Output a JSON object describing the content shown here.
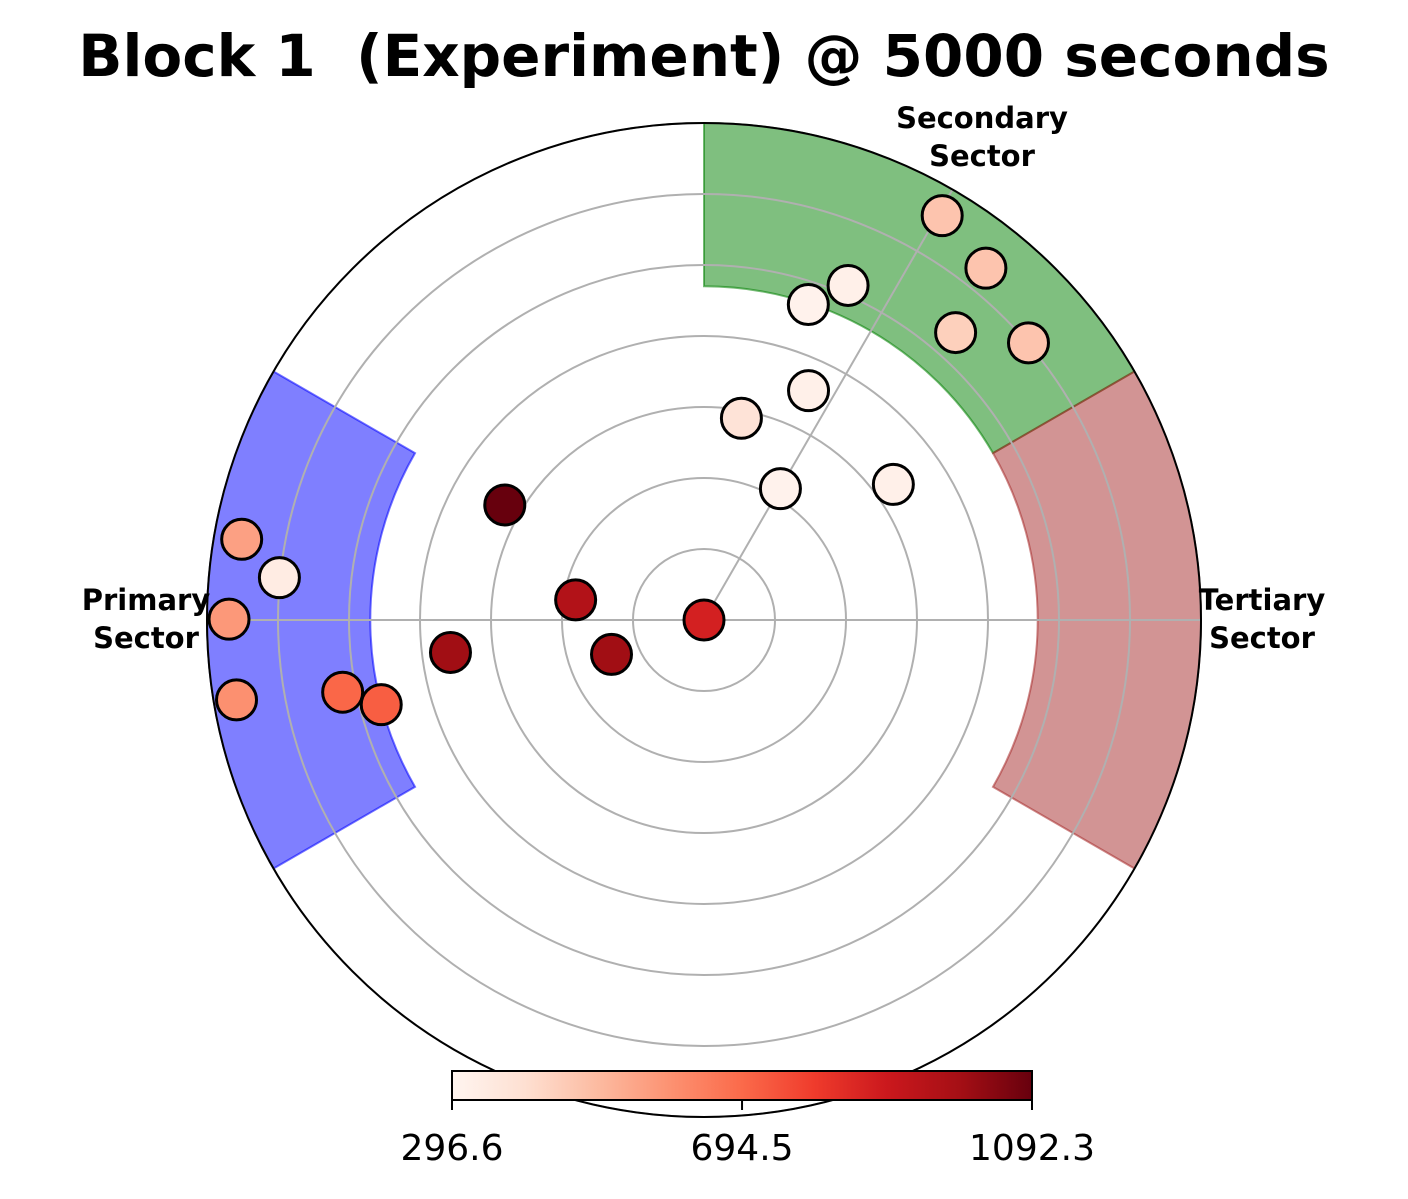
{
  "chart_data": {
    "type": "scatter",
    "subtype": "polar",
    "title": "Block 1  (Experiment) @ 5000 seconds",
    "rlim": [
      0,
      7
    ],
    "r_gridlines": [
      1,
      2,
      3,
      4,
      5,
      6,
      7
    ],
    "grid": true,
    "reference_line_angles_deg": [
      0,
      60
    ],
    "sectors": [
      {
        "label": [
          "Secondary",
          "Sector"
        ],
        "theta_deg": [
          30,
          90
        ],
        "r_range": [
          4.7,
          7
        ],
        "color": "#008000",
        "opacity": 0.5,
        "edge_color": "#008000"
      },
      {
        "label": [
          "Tertiary",
          "Sector"
        ],
        "theta_deg": [
          -30,
          30
        ],
        "r_range": [
          4.7,
          7
        ],
        "color": "#a52a2a",
        "opacity": 0.5,
        "edge_color": "#a52a2a"
      },
      {
        "label": [
          "Primary",
          "Sector"
        ],
        "theta_deg": [
          150,
          210
        ],
        "r_range": [
          4.7,
          7
        ],
        "color": "#0000ff",
        "opacity": 0.5,
        "edge_color": "#0000ff"
      }
    ],
    "points": [
      {
        "theta_deg": 0,
        "r": 0,
        "value": 870
      },
      {
        "theta_deg": 171.1,
        "r": 1.83,
        "value": 960
      },
      {
        "theta_deg": 200.4,
        "r": 1.39,
        "value": 1000
      },
      {
        "theta_deg": 187.3,
        "r": 3.6,
        "value": 1000
      },
      {
        "theta_deg": 150.0,
        "r": 3.24,
        "value": 1092.3
      },
      {
        "theta_deg": 59.8,
        "r": 2.14,
        "value": 310
      },
      {
        "theta_deg": 35.6,
        "r": 3.28,
        "value": 320
      },
      {
        "theta_deg": 79.5,
        "r": 2.89,
        "value": 380
      },
      {
        "theta_deg": 65.5,
        "r": 3.55,
        "value": 320
      },
      {
        "theta_deg": 71.7,
        "r": 4.68,
        "value": 310
      },
      {
        "theta_deg": 66.7,
        "r": 5.13,
        "value": 320
      },
      {
        "theta_deg": 48.8,
        "r": 5.38,
        "value": 440
      },
      {
        "theta_deg": 40.5,
        "r": 6.01,
        "value": 470
      },
      {
        "theta_deg": 51.3,
        "r": 6.35,
        "value": 470
      },
      {
        "theta_deg": 59.5,
        "r": 6.61,
        "value": 470
      },
      {
        "theta_deg": 174.3,
        "r": 6.01,
        "value": 340
      },
      {
        "theta_deg": 170.1,
        "r": 6.61,
        "value": 560
      },
      {
        "theta_deg": 179.9,
        "r": 6.69,
        "value": 580
      },
      {
        "theta_deg": 189.7,
        "r": 6.68,
        "value": 600
      },
      {
        "theta_deg": 191.3,
        "r": 5.19,
        "value": 700
      },
      {
        "theta_deg": 194.7,
        "r": 4.7,
        "value": 720
      }
    ],
    "colorbar": {
      "colormap": "Reds",
      "vmin": 296.6,
      "vmax": 1092.3,
      "ticks": [
        296.6,
        694.5,
        1092.3
      ],
      "tick_labels": [
        "296.6",
        "694.5",
        "1092.3"
      ]
    }
  }
}
